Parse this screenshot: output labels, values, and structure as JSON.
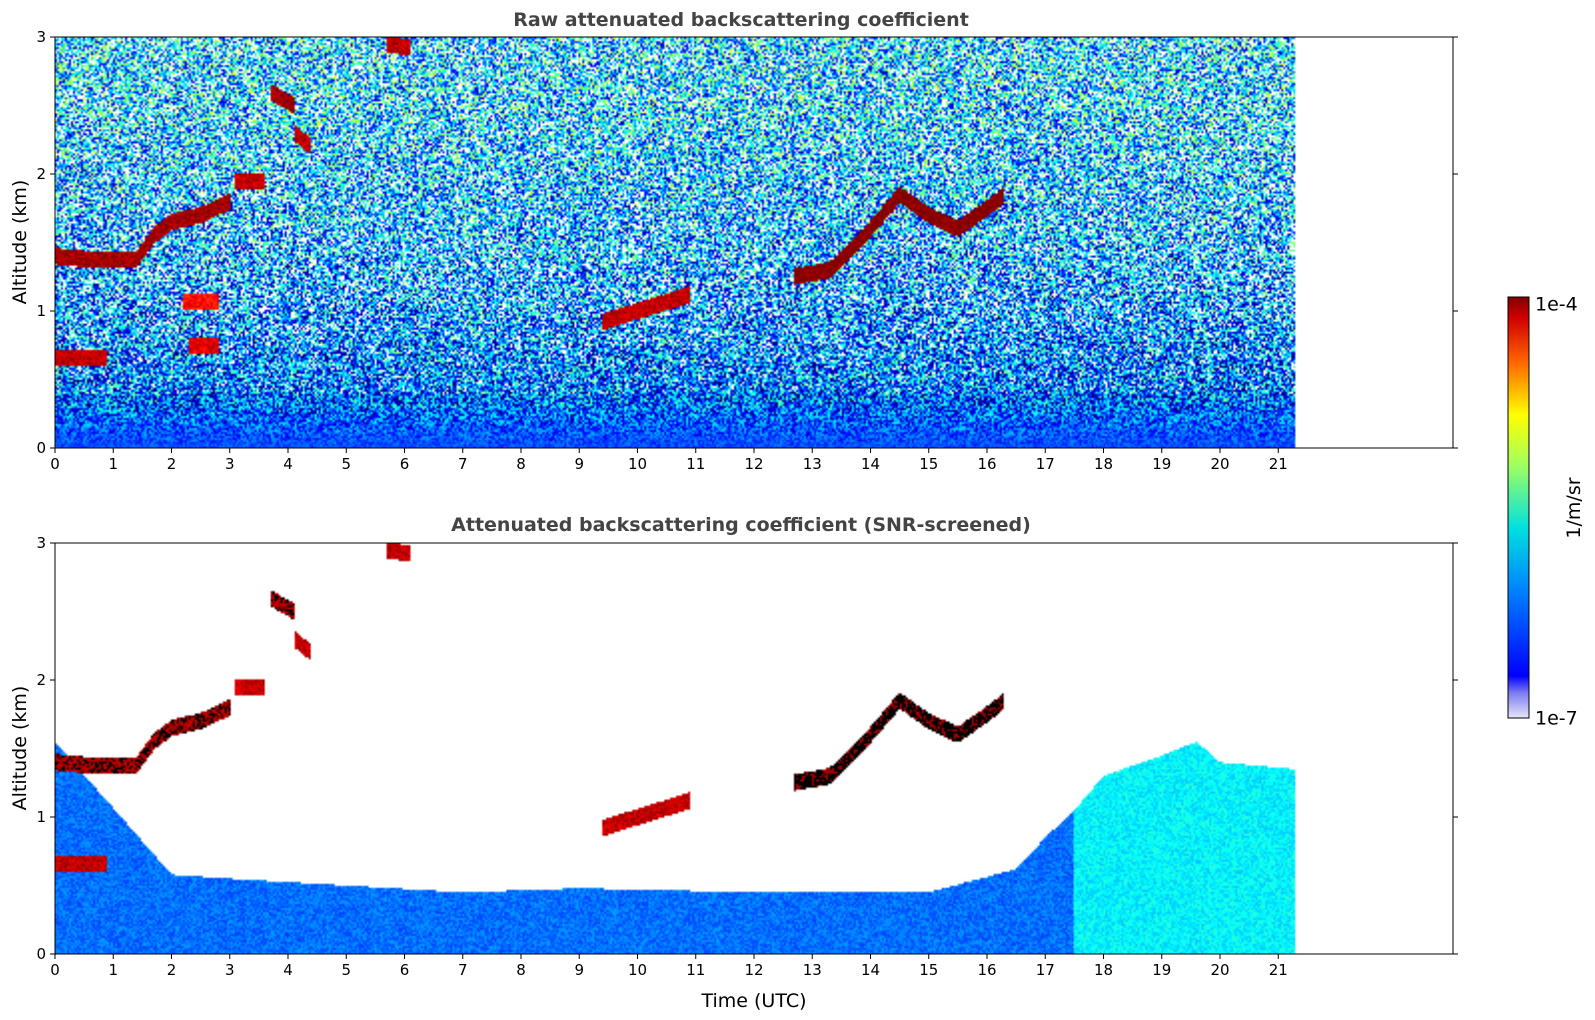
{
  "chart_data": [
    {
      "type": "heatmap",
      "title": "Raw attenuated backscattering coefficient",
      "xlabel": "",
      "ylabel": "Altitude (km)",
      "xlim": [
        0,
        24
      ],
      "ylim": [
        0,
        3
      ],
      "x_ticks": [
        0,
        1,
        2,
        3,
        4,
        5,
        6,
        7,
        8,
        9,
        10,
        11,
        12,
        13,
        14,
        15,
        16,
        17,
        18,
        19,
        20,
        21
      ],
      "y_ticks": [
        0,
        1,
        2,
        3
      ],
      "data_extent_x": [
        0,
        21.3
      ],
      "screened": false,
      "background_log10": {
        "near_surface": -6.4,
        "aloft": -6.0,
        "noise": "high"
      },
      "features": [
        {
          "name": "boundary layer cloud top",
          "x": [
            0,
            0.5,
            1.0,
            1.4,
            1.7,
            2.0,
            2.5,
            3.0
          ],
          "y": [
            1.4,
            1.38,
            1.38,
            1.38,
            1.55,
            1.65,
            1.7,
            1.8
          ],
          "log10": -4.1
        },
        {
          "name": "low cloud",
          "x": [
            0,
            0.9
          ],
          "y": [
            0.66,
            0.66
          ],
          "log10": -4.2
        },
        {
          "name": "cloud segment",
          "x": [
            3.1,
            3.6
          ],
          "y": [
            1.95,
            1.95
          ],
          "log10": -4.2
        },
        {
          "name": "elevated cloud",
          "x": [
            3.7,
            4.1
          ],
          "y": [
            2.6,
            2.5
          ],
          "log10": -4.1
        },
        {
          "name": "elevated cloud",
          "x": [
            4.1,
            4.4
          ],
          "y": [
            2.3,
            2.2
          ],
          "log10": -4.2
        },
        {
          "name": "cloud segment",
          "x": [
            2.3,
            2.8
          ],
          "y": [
            0.75,
            0.75
          ],
          "log10": -4.3
        },
        {
          "name": "cloud segment",
          "x": [
            2.2,
            2.8
          ],
          "y": [
            1.07,
            1.07
          ],
          "log10": -4.4
        },
        {
          "name": "high cloud",
          "x": [
            5.7,
            6.1
          ],
          "y": [
            2.95,
            2.92
          ],
          "log10": -4.2
        },
        {
          "name": "scattered cloud",
          "x": [
            9.4,
            10.9
          ],
          "y": [
            0.92,
            1.12
          ],
          "log10": -4.2
        },
        {
          "name": "cloud band",
          "x": [
            12.7,
            13.3,
            13.9,
            14.5,
            15.0,
            15.5,
            16.0,
            16.3
          ],
          "y": [
            1.25,
            1.3,
            1.55,
            1.85,
            1.7,
            1.6,
            1.75,
            1.85
          ],
          "log10": -4.0
        }
      ],
      "colorbar": {
        "label": "1/m/sr",
        "min_label": "1e-7",
        "max_label": "1e-4",
        "min": 1e-07,
        "max": 0.0001,
        "scale": "log",
        "colormap": "jet"
      }
    },
    {
      "type": "heatmap",
      "title": "Attenuated backscattering coefficient (SNR-screened)",
      "xlabel": "Time (UTC)",
      "ylabel": "Altitude (km)",
      "xlim": [
        0,
        24
      ],
      "ylim": [
        0,
        3
      ],
      "x_ticks": [
        0,
        1,
        2,
        3,
        4,
        5,
        6,
        7,
        8,
        9,
        10,
        11,
        12,
        13,
        14,
        15,
        16,
        17,
        18,
        19,
        20,
        21
      ],
      "y_ticks": [
        0,
        1,
        2,
        3
      ],
      "data_extent_x": [
        0,
        21.3
      ],
      "screened": true,
      "valid_layer_top": {
        "x": [
          0,
          2.0,
          3.0,
          5.0,
          7.0,
          9.0,
          12.0,
          15.0,
          16.5,
          17.0,
          17.5,
          18.0,
          19.0,
          19.6,
          20.0,
          20.5,
          21.3
        ],
        "y": [
          1.55,
          0.58,
          0.55,
          0.5,
          0.45,
          0.48,
          0.45,
          0.45,
          0.62,
          0.85,
          1.05,
          1.3,
          1.45,
          1.55,
          1.4,
          1.38,
          1.35
        ]
      },
      "low_signal_mask_log10": -6.5,
      "features": [
        {
          "name": "boundary layer cloud top",
          "x": [
            0,
            0.5,
            1.0,
            1.4,
            1.7,
            2.0,
            2.5,
            3.0
          ],
          "y": [
            1.4,
            1.38,
            1.38,
            1.38,
            1.55,
            1.65,
            1.7,
            1.8
          ],
          "log10": -4.1
        },
        {
          "name": "low cloud",
          "x": [
            0,
            0.9
          ],
          "y": [
            0.66,
            0.66
          ],
          "log10": -4.2
        },
        {
          "name": "cloud segment",
          "x": [
            3.1,
            3.6
          ],
          "y": [
            1.95,
            1.95
          ],
          "log10": -4.2
        },
        {
          "name": "elevated cloud",
          "x": [
            3.7,
            4.1
          ],
          "y": [
            2.6,
            2.5
          ],
          "log10": -4.1
        },
        {
          "name": "elevated cloud",
          "x": [
            4.1,
            4.4
          ],
          "y": [
            2.3,
            2.2
          ],
          "log10": -4.2
        },
        {
          "name": "high cloud",
          "x": [
            5.7,
            6.1
          ],
          "y": [
            2.95,
            2.92
          ],
          "log10": -4.2
        },
        {
          "name": "scattered cloud",
          "x": [
            9.4,
            10.9
          ],
          "y": [
            0.92,
            1.12
          ],
          "log10": -4.2
        },
        {
          "name": "cloud band",
          "x": [
            12.7,
            13.3,
            13.9,
            14.5,
            15.0,
            15.5,
            16.0,
            16.3
          ],
          "y": [
            1.25,
            1.3,
            1.55,
            1.85,
            1.7,
            1.6,
            1.75,
            1.85
          ],
          "log10": -4.0
        }
      ],
      "saturated_color": "#000000",
      "colorbar": {
        "label": "1/m/sr",
        "min_label": "1e-7",
        "max_label": "1e-4",
        "min": 1e-07,
        "max": 0.0001,
        "scale": "log",
        "colormap": "jet"
      }
    }
  ],
  "colorbar": {
    "label": "1/m/sr",
    "min_label": "1e-7",
    "max_label": "1e-4"
  }
}
